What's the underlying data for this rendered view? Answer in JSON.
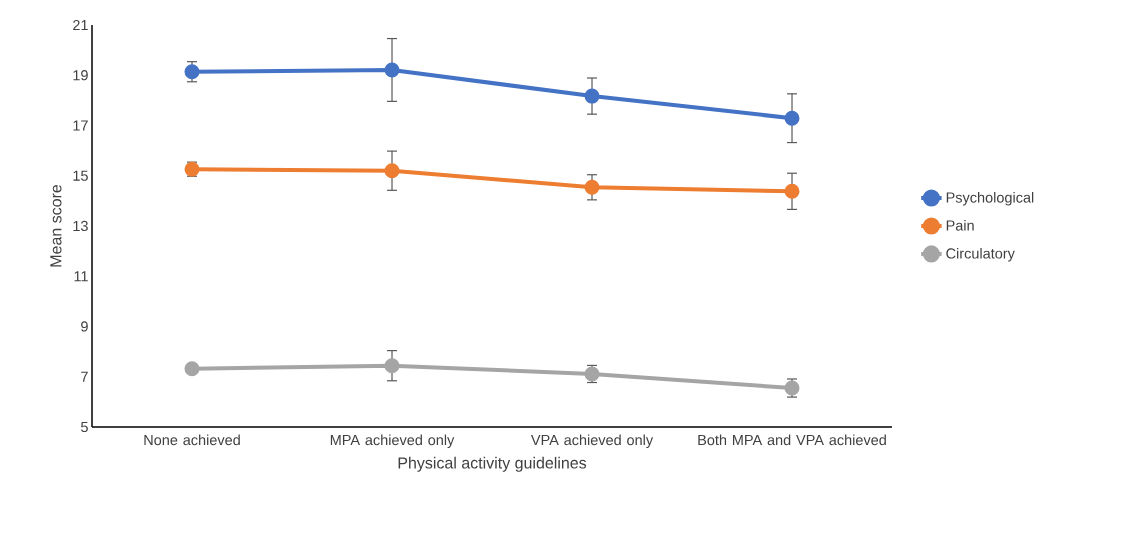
{
  "chart_data": {
    "type": "line",
    "xlabel": "Physical activity guidelines",
    "ylabel": "Mean score",
    "categories": [
      "None achieved",
      "MPA achieved only",
      "VPA achieved only",
      "Both MPA and VPA achieved"
    ],
    "series": [
      {
        "name": "Psychological",
        "color": "#4472c4",
        "values": [
          19.14,
          19.21,
          18.17,
          17.29
        ],
        "errors": [
          0.4,
          1.25,
          0.72,
          0.97
        ]
      },
      {
        "name": "Pain",
        "color": "#ed7d31",
        "values": [
          15.26,
          15.2,
          14.54,
          14.38
        ],
        "errors": [
          0.28,
          0.78,
          0.5,
          0.72
        ]
      },
      {
        "name": "Circulatory",
        "color": "#a5a5a5",
        "values": [
          7.32,
          7.44,
          7.11,
          6.55
        ],
        "errors": [
          null,
          0.6,
          0.34,
          0.36
        ]
      }
    ],
    "ylim": [
      5,
      21
    ],
    "yticks": [
      5,
      7,
      9,
      11,
      13,
      15,
      17,
      19,
      21
    ],
    "grid": false,
    "legend": "right",
    "marker": "circle",
    "line_style": "solid"
  }
}
